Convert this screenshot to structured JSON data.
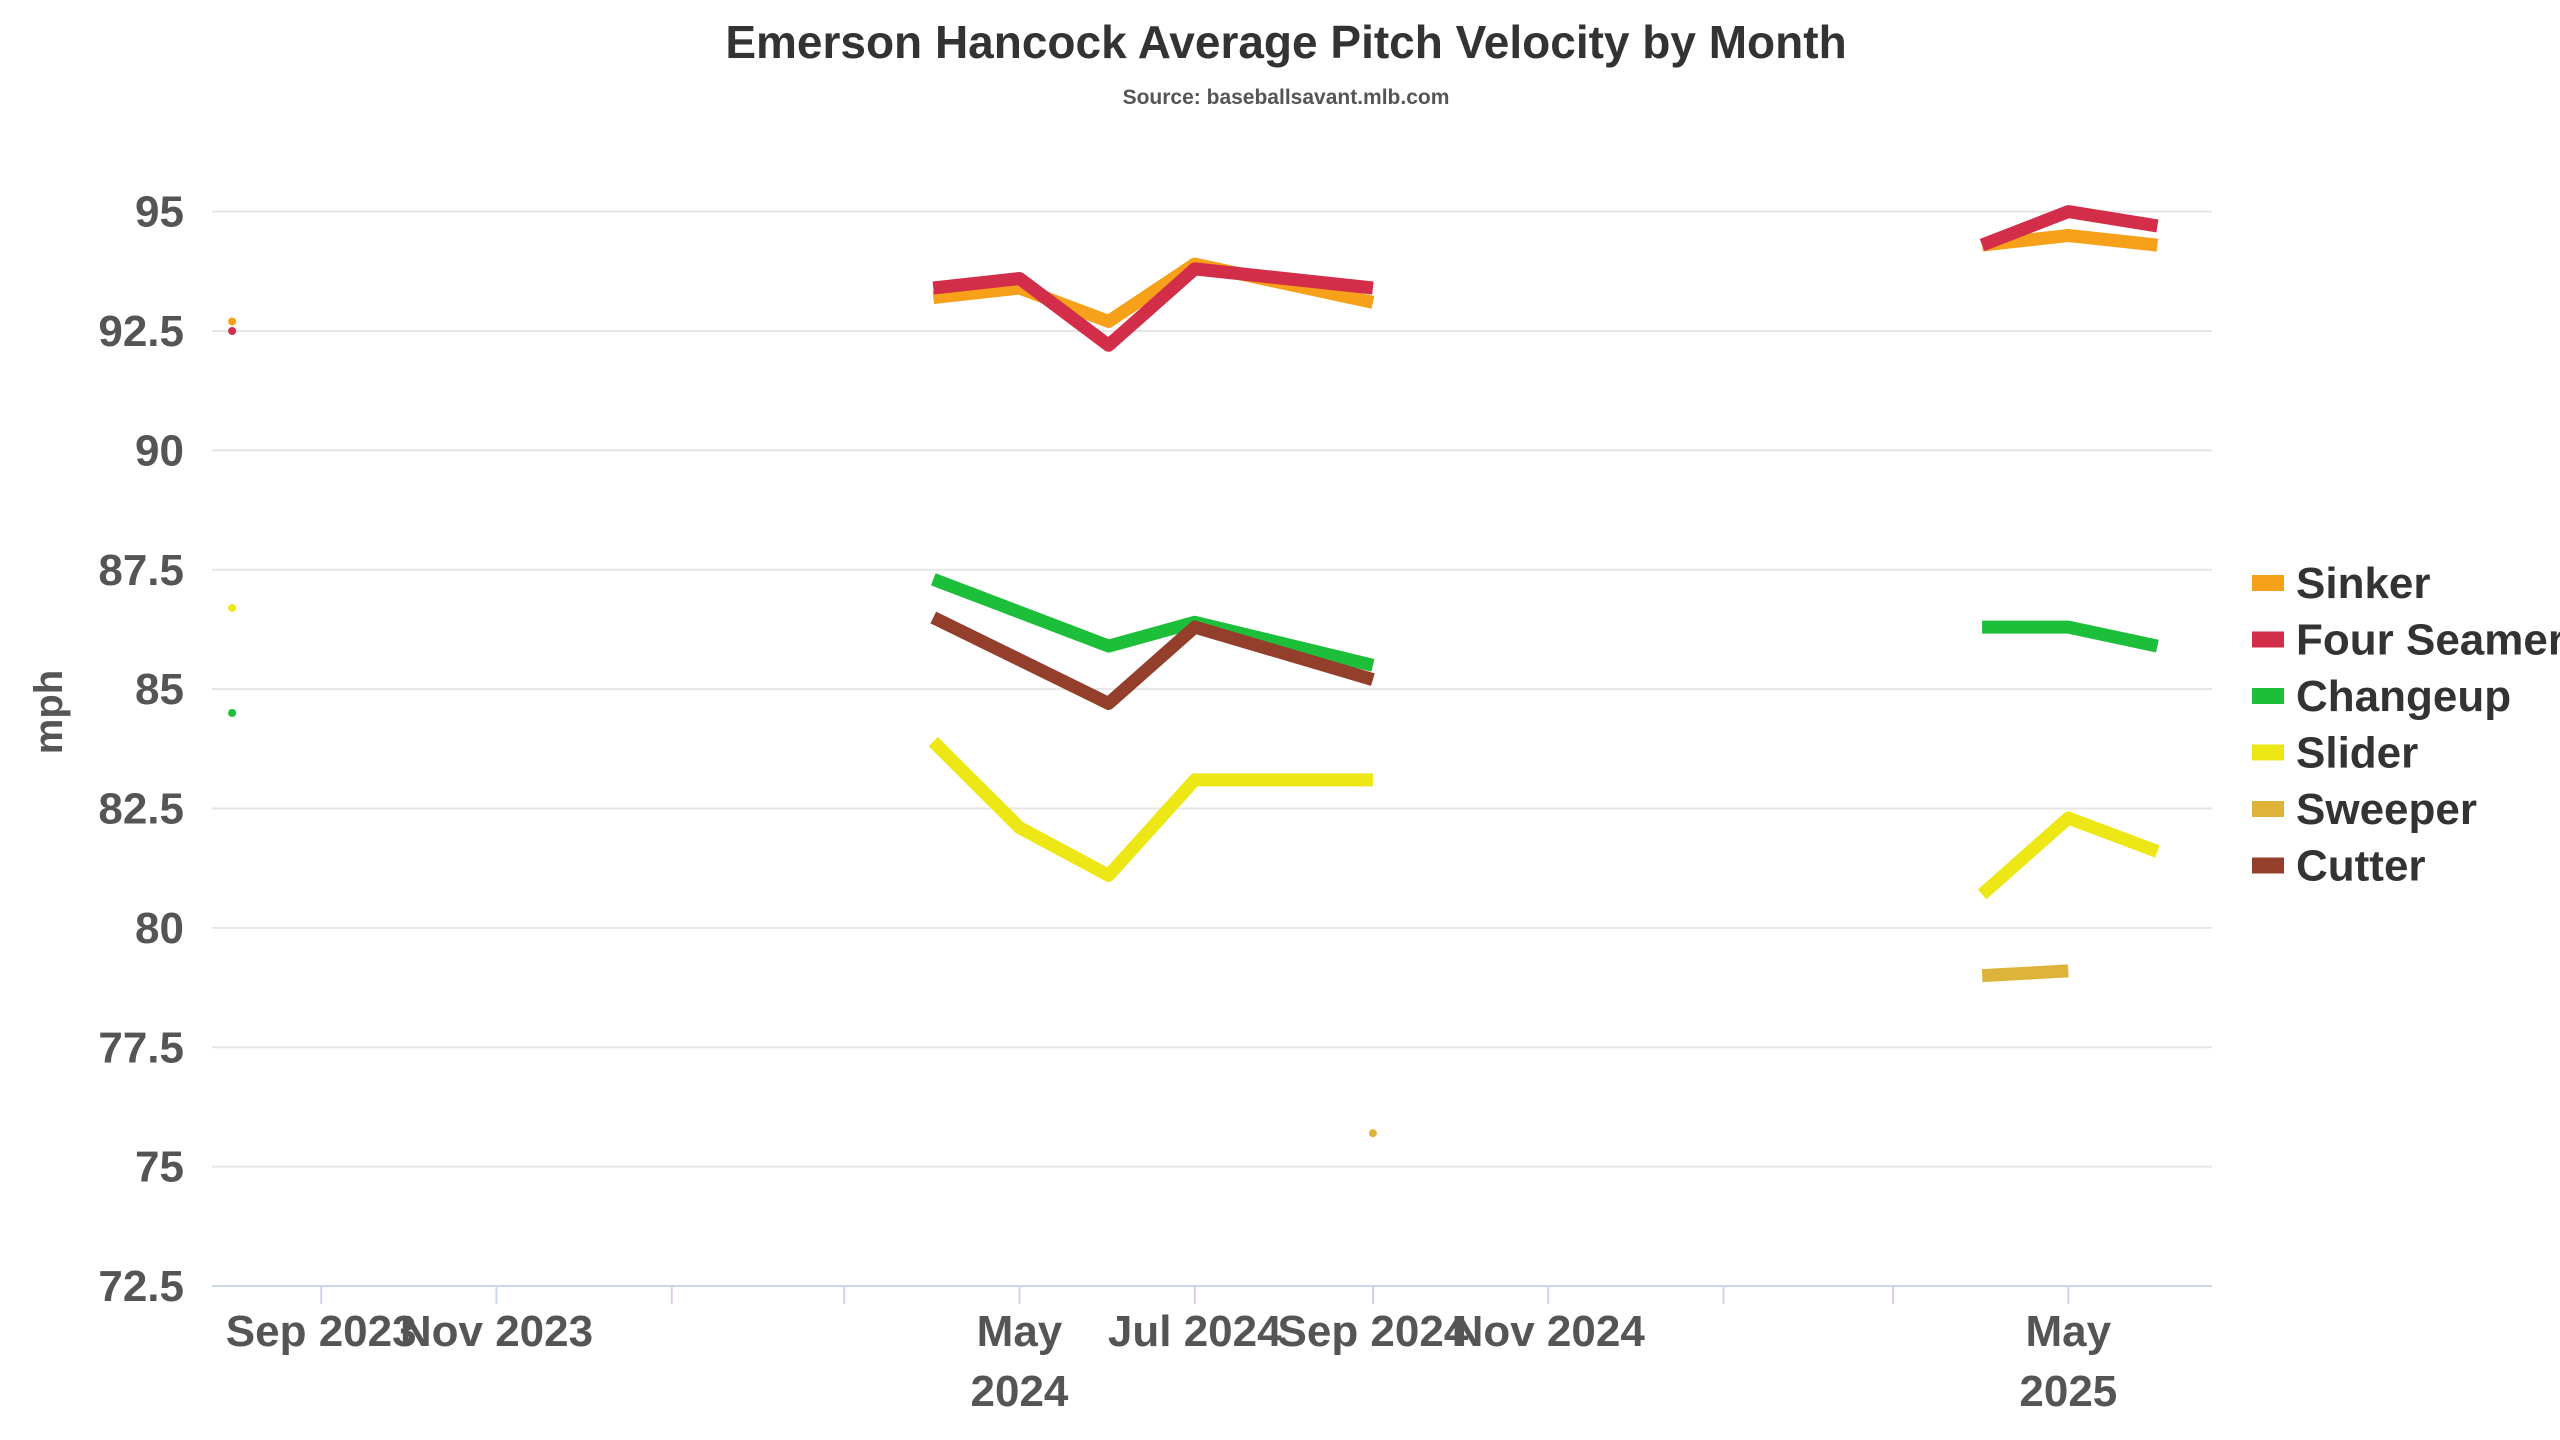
{
  "chart_data": {
    "type": "line",
    "title": "Emerson Hancock Average Pitch Velocity by Month",
    "subtitle": "Source: baseballsavant.mlb.com",
    "ylabel": "mph",
    "ylim": [
      72.5,
      96.5
    ],
    "yticks": [
      72.5,
      75,
      77.5,
      80,
      82.5,
      85,
      87.5,
      90,
      92.5,
      95
    ],
    "xlim": [
      "2023-07-25",
      "2025-06-20"
    ],
    "xticks": [
      {
        "date": "2023-09-01",
        "label": "Sep 2023"
      },
      {
        "date": "2023-11-01",
        "label": "Nov 2023"
      },
      {
        "date": "2024-01-01",
        "label": ""
      },
      {
        "date": "2024-03-01",
        "label": ""
      },
      {
        "date": "2024-05-01",
        "label": "May",
        "label2": "2024"
      },
      {
        "date": "2024-07-01",
        "label": "Jul 2024"
      },
      {
        "date": "2024-09-01",
        "label": "Sep 2024"
      },
      {
        "date": "2024-11-01",
        "label": "Nov 2024"
      },
      {
        "date": "2025-01-01",
        "label": ""
      },
      {
        "date": "2025-03-01",
        "label": ""
      },
      {
        "date": "2025-05-01",
        "label": "May",
        "label2": "2025"
      }
    ],
    "grid": true,
    "legend_position": "right",
    "series": [
      {
        "name": "Sinker",
        "color": "#f7a11a",
        "points": [
          [
            "2023-08-01",
            92.7
          ],
          [
            "2024-04-01",
            93.2
          ],
          [
            "2024-05-01",
            93.4
          ],
          [
            "2024-06-01",
            92.7
          ],
          [
            "2024-07-01",
            93.9
          ],
          [
            "2024-09-01",
            93.1
          ],
          [
            "2025-04-01",
            94.3
          ],
          [
            "2025-05-01",
            94.5
          ],
          [
            "2025-06-01",
            94.3
          ]
        ]
      },
      {
        "name": "Four Seamer",
        "color": "#d22d49",
        "points": [
          [
            "2023-08-01",
            92.5
          ],
          [
            "2024-04-01",
            93.4
          ],
          [
            "2024-05-01",
            93.6
          ],
          [
            "2024-06-01",
            92.2
          ],
          [
            "2024-07-01",
            93.8
          ],
          [
            "2024-09-01",
            93.4
          ],
          [
            "2025-04-01",
            94.3
          ],
          [
            "2025-05-01",
            95.0
          ],
          [
            "2025-06-01",
            94.7
          ]
        ]
      },
      {
        "name": "Changeup",
        "color": "#1dbe3a",
        "points": [
          [
            "2023-08-01",
            84.5
          ],
          [
            "2024-04-01",
            87.3
          ],
          [
            "2024-06-01",
            85.9
          ],
          [
            "2024-07-01",
            86.4
          ],
          [
            "2024-09-01",
            85.5
          ],
          [
            "2025-04-01",
            86.3
          ],
          [
            "2025-05-01",
            86.3
          ],
          [
            "2025-06-01",
            85.9
          ]
        ]
      },
      {
        "name": "Slider",
        "color": "#eee716",
        "points": [
          [
            "2023-08-01",
            86.7
          ],
          [
            "2024-04-01",
            83.9
          ],
          [
            "2024-05-01",
            82.1
          ],
          [
            "2024-06-01",
            81.1
          ],
          [
            "2024-07-01",
            83.1
          ],
          [
            "2024-09-01",
            83.1
          ],
          [
            "2025-04-01",
            80.7
          ],
          [
            "2025-05-01",
            82.3
          ],
          [
            "2025-06-01",
            81.6
          ]
        ]
      },
      {
        "name": "Sweeper",
        "color": "#ddb33a",
        "points": [
          [
            "2024-09-01",
            75.7
          ],
          [
            "2025-04-01",
            79.0
          ],
          [
            "2025-05-01",
            79.1
          ]
        ]
      },
      {
        "name": "Cutter",
        "color": "#933f2c",
        "points": [
          [
            "2024-04-01",
            86.5
          ],
          [
            "2024-06-01",
            84.7
          ],
          [
            "2024-07-01",
            86.3
          ],
          [
            "2024-09-01",
            85.2
          ]
        ]
      }
    ]
  }
}
